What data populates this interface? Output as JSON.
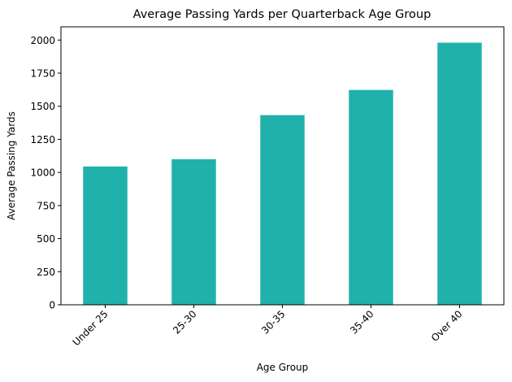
{
  "chart_data": {
    "type": "bar",
    "title": "Average Passing Yards per Quarterback Age Group",
    "xlabel": "Age Group",
    "ylabel": "Average Passing Yards",
    "categories": [
      "Under 25",
      "25-30",
      "30-35",
      "35-40",
      "Over 40"
    ],
    "values": [
      1045,
      1100,
      1433,
      1623,
      1980
    ],
    "ylim": [
      0,
      2100
    ],
    "yticks": [
      0,
      250,
      500,
      750,
      1000,
      1250,
      1500,
      1750,
      2000
    ],
    "bar_color": "#20b2aa",
    "grid": false,
    "legend": "none"
  }
}
